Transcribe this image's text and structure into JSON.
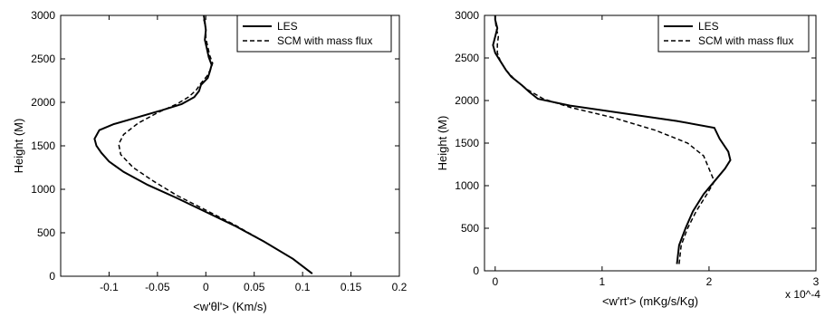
{
  "chart_data": [
    {
      "type": "line",
      "xlabel": "<w'θl'> (Km/s)",
      "ylabel": "Height (M)",
      "xlim": [
        -0.15,
        0.2
      ],
      "ylim": [
        0,
        3000
      ],
      "xticks": [
        -0.1,
        -0.05,
        0,
        0.05,
        0.1,
        0.15,
        0.2
      ],
      "xtick_labels": [
        "-0.1",
        "-0.05",
        "0",
        "0.05",
        "0.1",
        "0.15",
        "0.2"
      ],
      "yticks": [
        0,
        500,
        1000,
        1500,
        2000,
        2500,
        3000
      ],
      "ytick_labels": [
        "0",
        "500",
        "1000",
        "1500",
        "2000",
        "2500",
        "3000"
      ],
      "legend": "top-right",
      "grid": false,
      "series": [
        {
          "name": "LES",
          "style": "solid",
          "points": [
            [
              0.11,
              30
            ],
            [
              0.09,
              200
            ],
            [
              0.06,
              400
            ],
            [
              0.03,
              580
            ],
            [
              0.0,
              740
            ],
            [
              -0.03,
              900
            ],
            [
              -0.06,
              1050
            ],
            [
              -0.085,
              1200
            ],
            [
              -0.1,
              1320
            ],
            [
              -0.108,
              1420
            ],
            [
              -0.113,
              1500
            ],
            [
              -0.115,
              1580
            ],
            [
              -0.11,
              1680
            ],
            [
              -0.095,
              1750
            ],
            [
              -0.07,
              1830
            ],
            [
              -0.045,
              1910
            ],
            [
              -0.025,
              1980
            ],
            [
              -0.012,
              2060
            ],
            [
              -0.007,
              2130
            ],
            [
              -0.005,
              2200
            ],
            [
              0.002,
              2280
            ],
            [
              0.004,
              2350
            ],
            [
              0.006,
              2430
            ],
            [
              0.003,
              2520
            ],
            [
              0.001,
              2620
            ],
            [
              -0.001,
              2720
            ],
            [
              0.0,
              2830
            ],
            [
              -0.001,
              2920
            ],
            [
              -0.002,
              3000
            ]
          ]
        },
        {
          "name": "SCM with mass flux",
          "style": "dashed",
          "points": [
            [
              0.11,
              30
            ],
            [
              0.09,
              200
            ],
            [
              0.06,
              400
            ],
            [
              0.03,
              590
            ],
            [
              0.0,
              760
            ],
            [
              -0.03,
              930
            ],
            [
              -0.055,
              1100
            ],
            [
              -0.075,
              1250
            ],
            [
              -0.088,
              1400
            ],
            [
              -0.09,
              1520
            ],
            [
              -0.085,
              1630
            ],
            [
              -0.07,
              1760
            ],
            [
              -0.05,
              1880
            ],
            [
              -0.03,
              1980
            ],
            [
              -0.018,
              2060
            ],
            [
              -0.01,
              2140
            ],
            [
              -0.005,
              2220
            ],
            [
              0.001,
              2300
            ],
            [
              0.005,
              2380
            ],
            [
              0.007,
              2450
            ],
            [
              0.004,
              2540
            ],
            [
              0.002,
              2640
            ],
            [
              0.0,
              2740
            ],
            [
              0.0,
              2850
            ],
            [
              -0.002,
              2950
            ],
            [
              -0.002,
              3000
            ]
          ]
        }
      ]
    },
    {
      "type": "line",
      "xlabel": "<w'rt'> (mKg/s/Kg)",
      "ylabel": "Height (M)",
      "x_multiplier": "x 10^-4",
      "xlim": [
        -0.1,
        3
      ],
      "ylim": [
        0,
        3000
      ],
      "xticks": [
        0,
        1,
        2,
        3
      ],
      "xtick_labels": [
        "0",
        "1",
        "2",
        "3"
      ],
      "yticks": [
        0,
        500,
        1000,
        1500,
        2000,
        2500,
        3000
      ],
      "ytick_labels": [
        "0",
        "500",
        "1000",
        "1500",
        "2000",
        "2500",
        "3000"
      ],
      "legend": "top-right",
      "grid": false,
      "series": [
        {
          "name": "LES",
          "style": "solid",
          "points": [
            [
              1.7,
              80
            ],
            [
              1.72,
              300
            ],
            [
              1.78,
              500
            ],
            [
              1.85,
              700
            ],
            [
              1.95,
              900
            ],
            [
              2.05,
              1050
            ],
            [
              2.15,
              1200
            ],
            [
              2.2,
              1300
            ],
            [
              2.18,
              1400
            ],
            [
              2.1,
              1550
            ],
            [
              2.05,
              1680
            ],
            [
              1.7,
              1760
            ],
            [
              1.2,
              1850
            ],
            [
              0.7,
              1940
            ],
            [
              0.4,
              2020
            ],
            [
              0.32,
              2100
            ],
            [
              0.25,
              2180
            ],
            [
              0.15,
              2280
            ],
            [
              0.1,
              2360
            ],
            [
              0.05,
              2460
            ],
            [
              0.0,
              2560
            ],
            [
              -0.02,
              2650
            ],
            [
              0.0,
              2750
            ],
            [
              0.02,
              2850
            ],
            [
              0.0,
              2950
            ],
            [
              0.0,
              3000
            ]
          ]
        },
        {
          "name": "SCM with mass flux",
          "style": "dashed",
          "points": [
            [
              1.72,
              80
            ],
            [
              1.74,
              300
            ],
            [
              1.8,
              500
            ],
            [
              1.88,
              700
            ],
            [
              1.98,
              900
            ],
            [
              2.05,
              1050
            ],
            [
              2.0,
              1200
            ],
            [
              1.95,
              1350
            ],
            [
              1.8,
              1500
            ],
            [
              1.5,
              1650
            ],
            [
              1.1,
              1800
            ],
            [
              0.7,
              1920
            ],
            [
              0.45,
              2020
            ],
            [
              0.3,
              2130
            ],
            [
              0.18,
              2250
            ],
            [
              0.1,
              2360
            ],
            [
              0.05,
              2460
            ],
            [
              0.02,
              2560
            ],
            [
              0.02,
              2660
            ],
            [
              0.03,
              2750
            ],
            [
              0.01,
              2850
            ],
            [
              0.0,
              2950
            ],
            [
              0.0,
              3000
            ]
          ]
        }
      ]
    }
  ]
}
